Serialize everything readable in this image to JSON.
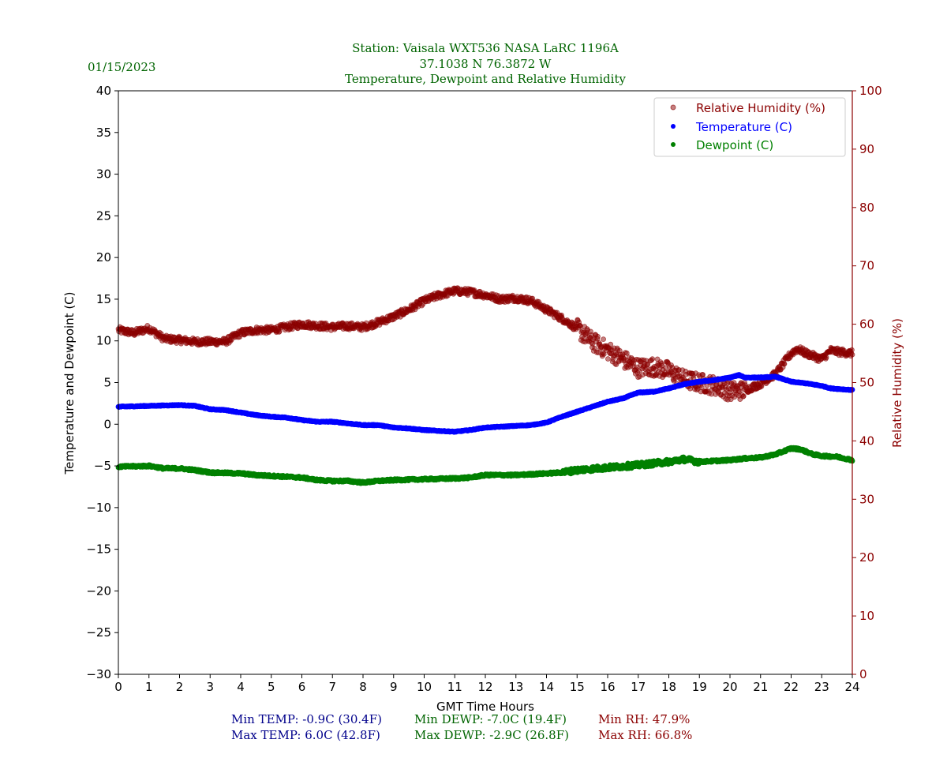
{
  "header": {
    "date": "01/15/2023",
    "title_line1": "Station:  Vaisala WXT536  NASA LaRC 1196A",
    "title_line2": "37.1038 N 76.3872 W",
    "title_line3": "Temperature, Dewpoint and Relative Humidity"
  },
  "stats": {
    "min_temp": "Min TEMP: -0.9C (30.4F)",
    "max_temp": "Max TEMP: 6.0C (42.8F)",
    "min_dewp": "Min DEWP: -7.0C (19.4F)",
    "max_dewp": "Max DEWP: -2.9C (26.8F)",
    "min_rh": "Min RH: 47.9%",
    "max_rh": "Max RH: 66.8%"
  },
  "colors": {
    "title": "#006400",
    "temp": "#0000ff",
    "dewp": "#008000",
    "rh": "#8b0000",
    "stat_temp": "#00008b",
    "stat_dewp": "#006400",
    "stat_rh": "#8b0000"
  },
  "chart_data": {
    "type": "scatter",
    "xlabel": "GMT Time Hours",
    "ylabel": "Temperature and Dewpoint (C)",
    "y2label": "Relative Humidity (%)",
    "xlim": [
      0,
      24
    ],
    "ylim": [
      -30,
      40
    ],
    "y2lim": [
      0,
      100
    ],
    "xticks": [
      "0",
      "1",
      "2",
      "3",
      "4",
      "5",
      "6",
      "7",
      "8",
      "9",
      "10",
      "11",
      "12",
      "13",
      "14",
      "15",
      "16",
      "17",
      "18",
      "19",
      "20",
      "21",
      "22",
      "23",
      "24"
    ],
    "yticks": [
      "−30",
      "−25",
      "−20",
      "−15",
      "−10",
      "−5",
      "0",
      "5",
      "10",
      "15",
      "20",
      "25",
      "30",
      "35",
      "40"
    ],
    "y2ticks": [
      "0",
      "10",
      "20",
      "30",
      "40",
      "50",
      "60",
      "70",
      "80",
      "90",
      "100"
    ],
    "legend_position": "top-right",
    "legend": [
      "Relative Humidity (%)",
      "Temperature (C)",
      "Dewpoint (C)"
    ],
    "series": [
      {
        "name": "Relative Humidity (%)",
        "axis": "right",
        "x": [
          0,
          0.5,
          1,
          1.5,
          2,
          2.5,
          3,
          3.5,
          4,
          4.5,
          5,
          5.5,
          6,
          7,
          7.5,
          8,
          8.5,
          9,
          9.5,
          10,
          10.5,
          11,
          11.5,
          12,
          12.5,
          13,
          13.5,
          14,
          14.5,
          15,
          15.5,
          16,
          16.5,
          17,
          17.5,
          18,
          18.5,
          19,
          19.5,
          20,
          20.5,
          21,
          21.5,
          22,
          22.2,
          22.5,
          23,
          23.3,
          23.5,
          24
        ],
        "y": [
          59,
          58.5,
          59.3,
          57.5,
          57.3,
          57,
          57,
          57,
          58.5,
          59,
          59,
          59.5,
          60,
          59.5,
          59.7,
          59.5,
          60.3,
          61.3,
          62.5,
          64,
          65,
          65.7,
          65.5,
          65,
          64.3,
          64.5,
          64,
          62.5,
          61,
          59.3,
          57,
          55.5,
          54,
          52.5,
          52.7,
          52,
          50.5,
          50,
          49.5,
          48.5,
          48.7,
          49.8,
          51.5,
          55,
          55.8,
          55,
          54,
          55.5,
          55.3,
          55
        ]
      },
      {
        "name": "Temperature (C)",
        "axis": "left",
        "x": [
          0,
          1,
          2,
          2.5,
          3,
          3.5,
          4,
          4.5,
          5,
          5.5,
          6,
          6.5,
          7,
          7.5,
          8,
          8.5,
          9,
          9.5,
          10,
          10.5,
          11,
          11.5,
          12,
          12.5,
          13,
          13.5,
          14,
          14.5,
          15,
          15.5,
          16,
          16.5,
          17,
          17.5,
          18,
          18.5,
          19,
          19.5,
          20,
          20.3,
          20.5,
          21,
          21.5,
          22,
          22.5,
          23,
          23.3,
          24
        ],
        "y": [
          2.1,
          2.2,
          2.3,
          2.2,
          1.8,
          1.7,
          1.4,
          1.1,
          0.9,
          0.8,
          0.5,
          0.3,
          0.3,
          0.1,
          -0.1,
          -0.1,
          -0.4,
          -0.5,
          -0.7,
          -0.8,
          -0.9,
          -0.7,
          -0.4,
          -0.3,
          -0.2,
          -0.1,
          0.2,
          0.9,
          1.5,
          2.1,
          2.7,
          3.1,
          3.8,
          3.9,
          4.3,
          4.8,
          5.1,
          5.3,
          5.6,
          5.9,
          5.6,
          5.6,
          5.7,
          5.1,
          4.9,
          4.6,
          4.3,
          4.1
        ]
      },
      {
        "name": "Dewpoint (C)",
        "axis": "left",
        "x": [
          0,
          1,
          1.5,
          2,
          2.5,
          3,
          4,
          4.5,
          5,
          6,
          6.5,
          7,
          7.5,
          8,
          8.5,
          9,
          10,
          11,
          11.5,
          12,
          13,
          13.5,
          14,
          14.5,
          15,
          16,
          17,
          18,
          18.5,
          19,
          20,
          20.5,
          21,
          21.5,
          22,
          22.3,
          22.7,
          23,
          23.5,
          24
        ],
        "y": [
          -5.1,
          -5.0,
          -5.3,
          -5.3,
          -5.5,
          -5.8,
          -5.9,
          -6.1,
          -6.2,
          -6.4,
          -6.7,
          -6.8,
          -6.8,
          -7.0,
          -6.8,
          -6.7,
          -6.6,
          -6.5,
          -6.4,
          -6.1,
          -6.1,
          -6.0,
          -5.9,
          -5.8,
          -5.5,
          -5.2,
          -4.9,
          -4.5,
          -4.2,
          -4.5,
          -4.3,
          -4.1,
          -4.0,
          -3.6,
          -2.9,
          -3.0,
          -3.6,
          -3.8,
          -3.9,
          -4.3
        ]
      }
    ]
  }
}
